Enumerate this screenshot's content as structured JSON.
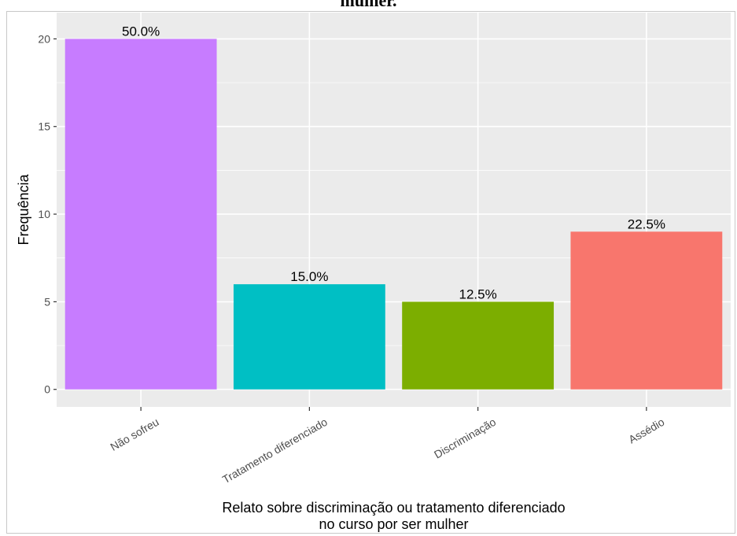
{
  "page": {
    "title": "mulher."
  },
  "chart_data": {
    "type": "bar",
    "categories": [
      "Não sofreu",
      "Tratamento diferenciado",
      "Discriminação",
      "Assédio"
    ],
    "values": [
      20,
      6,
      5,
      9
    ],
    "data_labels": [
      "50.0%",
      "15.0%",
      "12.5%",
      "22.5%"
    ],
    "colors": [
      "#C77CFF",
      "#00BFC4",
      "#7CAE00",
      "#F8766D"
    ],
    "title": "mulher.",
    "xlabel": "Relato sobre discriminação ou tratamento diferenciado\nno curso por ser mulher",
    "xlabel_lines": [
      "Relato sobre discriminação ou tratamento diferenciado",
      "no curso por ser mulher"
    ],
    "ylabel": "Frequência",
    "ylim": [
      -1,
      21.5
    ],
    "yticks": [
      0,
      5,
      10,
      15,
      20
    ],
    "ytick_labels": [
      "0",
      "5",
      "10",
      "15",
      "20"
    ],
    "grid": true,
    "background": "#EBEBEB",
    "legend": "none"
  }
}
